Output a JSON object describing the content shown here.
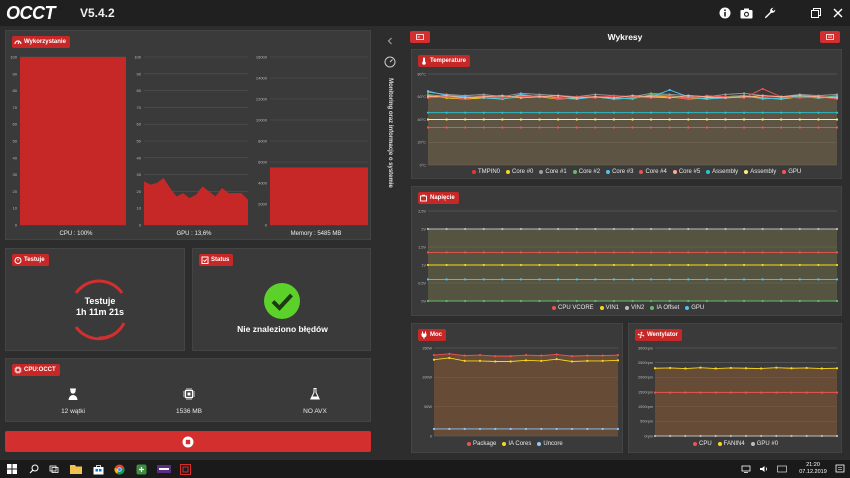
{
  "app": {
    "logo_text": "OCCT",
    "version": "V5.4.2"
  },
  "titlebar_icons": [
    "info-icon",
    "camera-icon",
    "wrench-icon",
    "restore-icon",
    "close-icon"
  ],
  "usage": {
    "title": "Wykorzystanie",
    "cpu": {
      "label": "CPU : 100%",
      "ticks": [
        "0",
        "10",
        "20",
        "30",
        "40",
        "50",
        "60",
        "70",
        "80",
        "90",
        "100"
      ],
      "value": 100
    },
    "gpu": {
      "label": "GPU : 13,6%",
      "ticks": [
        "0",
        "10",
        "20",
        "30",
        "40",
        "50",
        "60",
        "70",
        "80",
        "90",
        "100"
      ],
      "values": [
        26,
        24,
        25,
        28,
        22,
        17,
        19,
        16,
        18,
        23,
        20,
        17,
        22,
        19,
        19,
        19,
        15
      ]
    },
    "memory": {
      "label": "Memory : 5485 MB",
      "ticks": [
        "0",
        "2000",
        "4000",
        "6000",
        "8000",
        "10000",
        "12000",
        "14000",
        "16000"
      ],
      "value": 5485
    }
  },
  "test": {
    "title": "Testuje",
    "status_line1": "Testuje",
    "status_line2": "1h 11m 21s"
  },
  "status": {
    "title": "Status",
    "message": "Nie znaleziono błędów"
  },
  "config": {
    "title": "CPU:OCCT",
    "items": [
      {
        "icon": "user-icon",
        "label": "12 wątki"
      },
      {
        "icon": "chip-icon",
        "label": "1536 MB"
      },
      {
        "icon": "flask-icon",
        "label": "NO AVX"
      }
    ]
  },
  "stop_button": {
    "icon": "stop-icon"
  },
  "side_tab": {
    "label": "Monitoring oraz informacje o systemie"
  },
  "graphs": {
    "title": "Wykresy"
  },
  "temperature": {
    "title": "Temperature",
    "ticks": [
      "0°C",
      "20°C",
      "40°C",
      "60°C",
      "80°C"
    ],
    "series": [
      {
        "name": "TMPIN0",
        "color": "#e53935",
        "values": [
          60,
          60,
          60,
          60,
          60,
          60,
          60,
          60,
          60,
          60,
          60,
          60,
          60,
          60,
          60,
          60,
          60,
          60,
          60,
          60,
          60,
          60,
          60
        ]
      },
      {
        "name": "Core #0",
        "color": "#f9d71c",
        "values": [
          61,
          59,
          58,
          59,
          58,
          61,
          60,
          58,
          59,
          60,
          58,
          59,
          61,
          60,
          58,
          59,
          60,
          61,
          59,
          58,
          60,
          59,
          60
        ]
      },
      {
        "name": "Core #1",
        "color": "#9e9e9e",
        "values": [
          64,
          62,
          61,
          62,
          60,
          63,
          62,
          61,
          60,
          62,
          61,
          60,
          63,
          62,
          61,
          60,
          62,
          63,
          61,
          60,
          62,
          61,
          62
        ]
      },
      {
        "name": "Core #2",
        "color": "#66bb6a",
        "values": [
          62,
          60,
          59,
          61,
          58,
          60,
          61,
          59,
          58,
          60,
          59,
          58,
          62,
          61,
          59,
          58,
          60,
          61,
          58,
          59,
          60,
          59,
          61
        ]
      },
      {
        "name": "Core #3",
        "color": "#4fc3f7",
        "values": [
          65,
          61,
          60,
          59,
          58,
          62,
          60,
          59,
          58,
          60,
          58,
          59,
          60,
          66,
          60,
          58,
          59,
          60,
          59,
          58,
          61,
          59,
          60
        ]
      },
      {
        "name": "Core #4",
        "color": "#ef5350",
        "values": [
          59,
          60,
          58,
          61,
          59,
          60,
          61,
          58,
          60,
          59,
          61,
          60,
          59,
          60,
          58,
          61,
          60,
          59,
          67,
          60,
          59,
          60,
          58
        ]
      },
      {
        "name": "Core #5",
        "color": "#ffab91",
        "values": [
          60,
          61,
          59,
          60,
          61,
          59,
          60,
          61,
          59,
          60,
          59,
          61,
          60,
          59,
          61,
          60,
          59,
          60,
          61,
          60,
          61,
          60,
          59
        ]
      },
      {
        "name": "Assembly",
        "color": "#26c6da",
        "values": [
          46,
          46,
          46,
          46,
          46,
          46,
          46,
          46,
          46,
          46,
          46,
          46,
          46,
          46,
          46,
          46,
          46,
          46,
          46,
          46,
          46,
          46,
          46
        ]
      },
      {
        "name": "Assembly",
        "color": "#fff176",
        "values": [
          40,
          40,
          40,
          40,
          40,
          40,
          40,
          40,
          40,
          40,
          40,
          40,
          40,
          40,
          40,
          40,
          40,
          40,
          40,
          40,
          40,
          40,
          40
        ]
      },
      {
        "name": "GPU",
        "color": "#ff5252",
        "values": [
          33,
          33,
          33,
          33,
          33,
          33,
          33,
          33,
          33,
          33,
          33,
          33,
          33,
          33,
          33,
          33,
          33,
          33,
          33,
          33,
          33,
          33,
          33
        ]
      }
    ]
  },
  "voltage": {
    "title": "Napięcie",
    "ticks": [
      "0V",
      "0,5V",
      "1V",
      "1,5V",
      "2V",
      "2,5V"
    ],
    "series": [
      {
        "name": "CPU VCORE",
        "color": "#ef5350",
        "values": [
          1.35,
          1.35,
          1.35,
          1.35,
          1.35,
          1.35,
          1.35,
          1.35,
          1.35,
          1.35,
          1.35,
          1.35,
          1.35,
          1.35,
          1.35,
          1.35,
          1.35,
          1.35,
          1.35,
          1.35,
          1.35,
          1.35,
          1.35
        ]
      },
      {
        "name": "VIN1",
        "color": "#f9d71c",
        "values": [
          1.0,
          1.0,
          1.0,
          1.0,
          1.0,
          1.0,
          1.0,
          1.0,
          1.0,
          1.0,
          1.0,
          1.0,
          1.0,
          1.0,
          1.0,
          1.0,
          1.0,
          1.0,
          1.0,
          1.0,
          1.0,
          1.0,
          1.0
        ]
      },
      {
        "name": "VIN2",
        "color": "#bdbdbd",
        "values": [
          2.0,
          2.0,
          2.0,
          2.0,
          2.0,
          2.0,
          2.0,
          2.0,
          2.0,
          2.0,
          2.0,
          2.0,
          2.0,
          2.0,
          2.0,
          2.0,
          2.0,
          2.0,
          2.0,
          2.0,
          2.0,
          2.0,
          2.0
        ]
      },
      {
        "name": "IA Offset",
        "color": "#66bb6a",
        "values": [
          0.0,
          0.0,
          0.0,
          0.0,
          0.0,
          0.0,
          0.0,
          0.0,
          0.0,
          0.0,
          0.0,
          0.0,
          0.0,
          0.0,
          0.0,
          0.0,
          0.0,
          0.0,
          0.0,
          0.0,
          0.0,
          0.0,
          0.0
        ]
      },
      {
        "name": "GPU",
        "color": "#4fc3f7",
        "values": [
          0.6,
          0.6,
          0.6,
          0.6,
          0.6,
          0.6,
          0.6,
          0.6,
          0.6,
          0.6,
          0.6,
          0.6,
          0.6,
          0.6,
          0.6,
          0.6,
          0.6,
          0.6,
          0.6,
          0.6,
          0.6,
          0.6,
          0.6
        ]
      }
    ]
  },
  "power": {
    "title": "Moc",
    "ticks": [
      "0",
      "50W",
      "100W",
      "150W"
    ],
    "series": [
      {
        "name": "Package",
        "color": "#ef5350",
        "values": [
          138,
          140,
          137,
          138,
          136,
          136,
          138,
          137,
          139,
          136,
          137,
          137,
          138
        ]
      },
      {
        "name": "IA Cores",
        "color": "#f9d71c",
        "values": [
          130,
          133,
          128,
          128,
          127,
          127,
          129,
          128,
          131,
          127,
          128,
          128,
          129
        ]
      },
      {
        "name": "Uncore",
        "color": "#90caf9",
        "values": [
          12,
          12,
          12,
          12,
          12,
          12,
          12,
          12,
          12,
          12,
          12,
          12,
          12
        ]
      }
    ]
  },
  "fans": {
    "title": "Wentylator",
    "ticks": [
      "0rpm",
      "500rpm",
      "1000rpm",
      "1500rpm",
      "2000rpm",
      "2500rpm",
      "3000rpm"
    ],
    "series": [
      {
        "name": "CPU",
        "color": "#ef5350",
        "values": [
          1480,
          1480,
          1480,
          1480,
          1480,
          1480,
          1480,
          1480,
          1480,
          1480,
          1480,
          1480,
          1480
        ]
      },
      {
        "name": "FANIN4",
        "color": "#f9d71c",
        "values": [
          2310,
          2320,
          2300,
          2330,
          2300,
          2320,
          2310,
          2300,
          2330,
          2310,
          2320,
          2300,
          2310
        ]
      },
      {
        "name": "GPU #0",
        "color": "#bdbdbd",
        "values": [
          0,
          0,
          0,
          0,
          0,
          0,
          0,
          0,
          0,
          0,
          0,
          0,
          0
        ]
      }
    ]
  },
  "taskbar": {
    "time": "21:20",
    "date": "07.12.2019"
  }
}
